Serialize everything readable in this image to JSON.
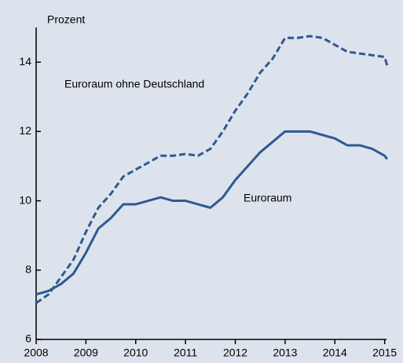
{
  "chart_data": {
    "type": "line",
    "y_label": "Prozent",
    "annotations": [
      "Euroraum ohne Deutschland",
      "Euroraum"
    ],
    "x": [
      2008.0,
      2008.25,
      2008.5,
      2008.75,
      2009.0,
      2009.25,
      2009.5,
      2009.75,
      2010.0,
      2010.25,
      2010.5,
      2010.75,
      2011.0,
      2011.25,
      2011.5,
      2011.75,
      2012.0,
      2012.25,
      2012.5,
      2012.75,
      2013.0,
      2013.25,
      2013.5,
      2013.75,
      2014.0,
      2014.25,
      2014.5,
      2014.75,
      2015.0,
      2015.05
    ],
    "series": [
      {
        "name": "Euroraum ohne Deutschland",
        "color": "#2e5a93",
        "dash": true,
        "values": [
          7.05,
          7.3,
          7.8,
          8.3,
          9.1,
          9.8,
          10.2,
          10.7,
          10.9,
          11.1,
          11.3,
          11.3,
          11.35,
          11.3,
          11.5,
          12.0,
          12.6,
          13.1,
          13.7,
          14.1,
          14.7,
          14.7,
          14.75,
          14.7,
          14.5,
          14.3,
          14.25,
          14.2,
          14.15,
          13.9
        ]
      },
      {
        "name": "Euroraum",
        "color": "#2e5a93",
        "dash": false,
        "values": [
          7.3,
          7.4,
          7.6,
          7.9,
          8.5,
          9.2,
          9.5,
          9.9,
          9.9,
          10.0,
          10.1,
          10.0,
          10.0,
          9.9,
          9.8,
          10.1,
          10.6,
          11.0,
          11.4,
          11.7,
          12.0,
          12.0,
          12.0,
          11.9,
          11.8,
          11.6,
          11.6,
          11.5,
          11.3,
          11.2
        ]
      }
    ],
    "xlim": [
      2008,
      2015.1
    ],
    "xticks": [
      2008,
      2009,
      2010,
      2011,
      2012,
      2013,
      2014,
      2015
    ],
    "ylim": [
      6,
      15
    ],
    "yticks": [
      6,
      8,
      10,
      12,
      14
    ]
  }
}
